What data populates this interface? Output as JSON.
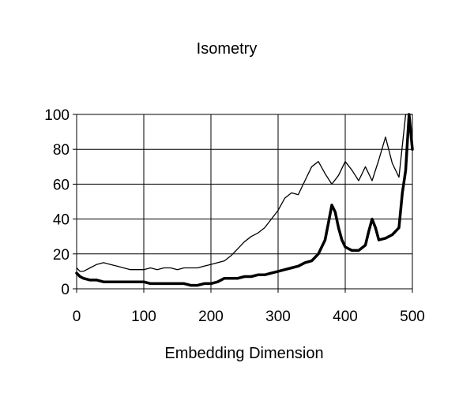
{
  "chart_data": {
    "type": "line",
    "title": "Isometry",
    "xlabel": "Embedding Dimension",
    "ylabel": "",
    "xlim": [
      0,
      500
    ],
    "ylim": [
      0,
      100
    ],
    "xticks": [
      0,
      100,
      200,
      300,
      400,
      500
    ],
    "yticks": [
      0,
      20,
      40,
      60,
      80,
      100
    ],
    "grid": true,
    "legend": "none",
    "series": [
      {
        "style": "thin",
        "color": "#000000",
        "x": [
          0,
          5,
          10,
          20,
          30,
          40,
          50,
          60,
          70,
          80,
          90,
          100,
          110,
          120,
          130,
          140,
          150,
          160,
          170,
          180,
          190,
          200,
          210,
          220,
          230,
          240,
          250,
          260,
          270,
          280,
          290,
          300,
          310,
          320,
          330,
          340,
          350,
          360,
          370,
          380,
          390,
          400,
          410,
          420,
          430,
          440,
          450,
          460,
          470,
          480,
          490,
          500
        ],
        "y": [
          12,
          10,
          10,
          12,
          14,
          15,
          14,
          13,
          12,
          11,
          11,
          11,
          12,
          11,
          12,
          12,
          11,
          12,
          12,
          12,
          13,
          14,
          15,
          16,
          19,
          23,
          27,
          30,
          32,
          35,
          40,
          45,
          52,
          55,
          54,
          62,
          70,
          73,
          66,
          60,
          65,
          73,
          68,
          62,
          70,
          62,
          74,
          87,
          72,
          64,
          100,
          100
        ]
      },
      {
        "style": "thick",
        "color": "#000000",
        "x": [
          0,
          5,
          10,
          20,
          30,
          40,
          50,
          60,
          70,
          80,
          90,
          100,
          110,
          120,
          130,
          140,
          150,
          160,
          170,
          180,
          190,
          200,
          210,
          220,
          230,
          240,
          250,
          260,
          270,
          280,
          290,
          300,
          310,
          320,
          330,
          340,
          350,
          360,
          370,
          375,
          380,
          385,
          390,
          395,
          400,
          410,
          420,
          430,
          435,
          440,
          445,
          450,
          460,
          470,
          480,
          485,
          490,
          495,
          500
        ],
        "y": [
          9,
          7,
          6,
          5,
          5,
          4,
          4,
          4,
          4,
          4,
          4,
          4,
          3,
          3,
          3,
          3,
          3,
          3,
          2,
          2,
          3,
          3,
          4,
          6,
          6,
          6,
          7,
          7,
          8,
          8,
          9,
          10,
          11,
          12,
          13,
          15,
          16,
          20,
          28,
          38,
          48,
          44,
          35,
          28,
          24,
          22,
          22,
          25,
          33,
          40,
          35,
          28,
          29,
          31,
          35,
          55,
          68,
          100,
          80
        ]
      }
    ]
  }
}
